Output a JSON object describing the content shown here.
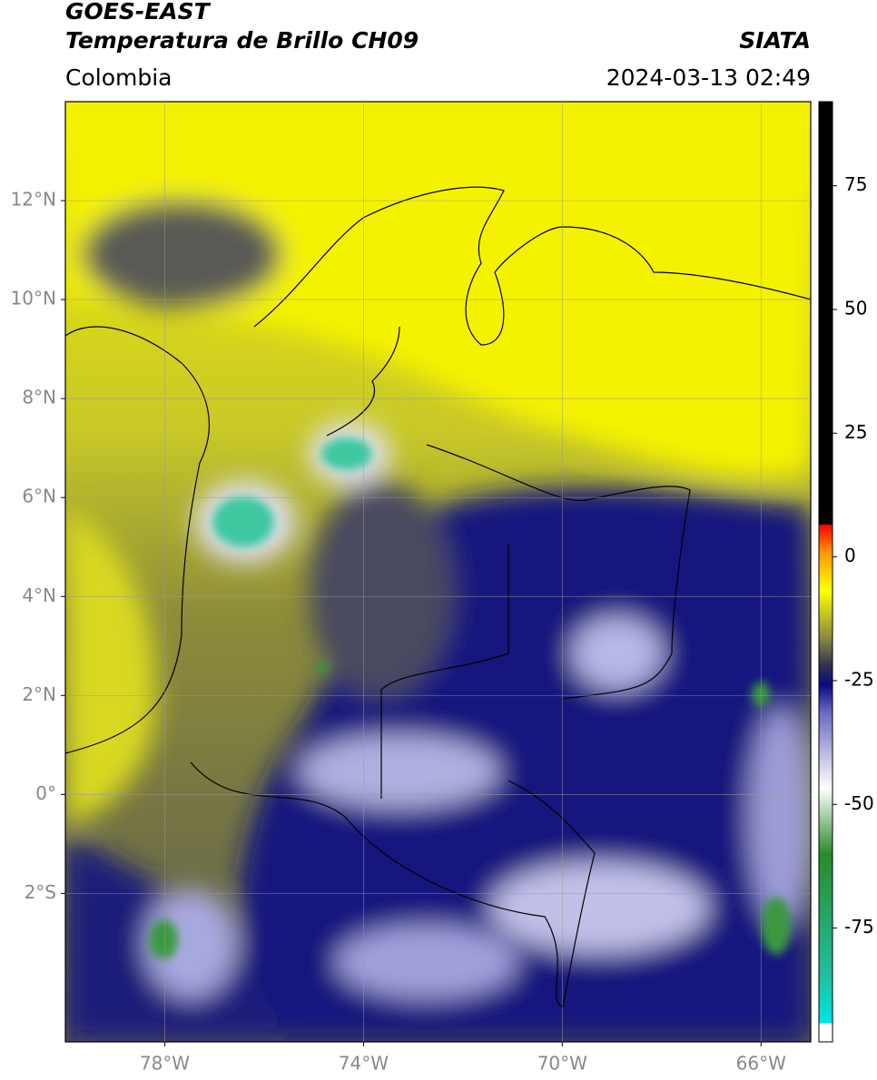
{
  "header": {
    "satellite": "GOES-EAST",
    "product": "Temperatura de Brillo CH09",
    "source": "SIATA",
    "region": "Colombia",
    "datetime": "2024-03-13 02:49"
  },
  "map": {
    "lon_range": [
      -80,
      -65
    ],
    "lat_range": [
      -5,
      14
    ],
    "lon_ticks": [
      {
        "value": -78,
        "label": "78°W"
      },
      {
        "value": -74,
        "label": "74°W"
      },
      {
        "value": -70,
        "label": "70°W"
      },
      {
        "value": -66,
        "label": "66°W"
      }
    ],
    "lat_ticks": [
      {
        "value": 12,
        "label": "12°N"
      },
      {
        "value": 10,
        "label": "10°N"
      },
      {
        "value": 8,
        "label": "8°N"
      },
      {
        "value": 6,
        "label": "6°N"
      },
      {
        "value": 4,
        "label": "4°N"
      },
      {
        "value": 2,
        "label": "2°N"
      },
      {
        "value": 0,
        "label": "0°"
      },
      {
        "value": -2,
        "label": "2°S"
      }
    ]
  },
  "colorbar": {
    "range": [
      -98,
      92
    ],
    "ticks": [
      75,
      50,
      25,
      0,
      -25,
      -50,
      -75
    ]
  }
}
